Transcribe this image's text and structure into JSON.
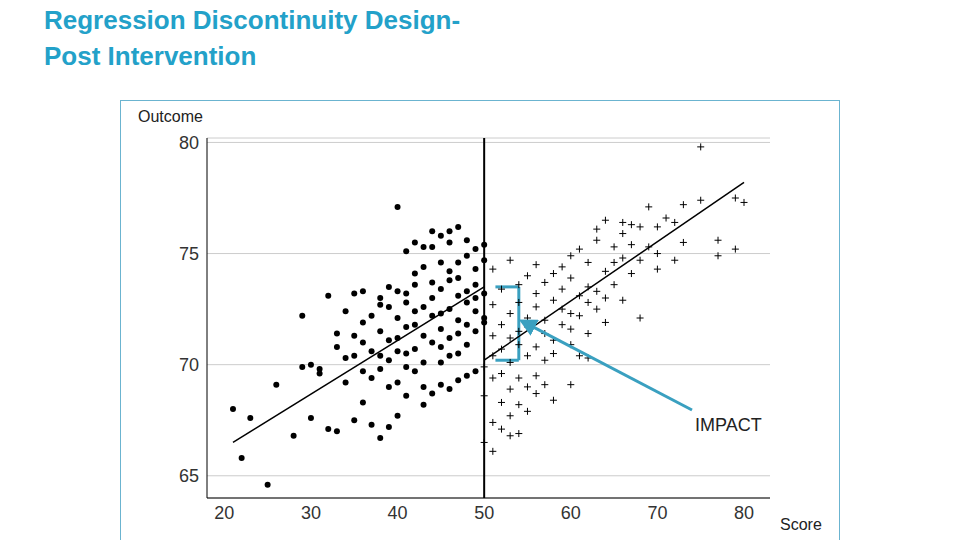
{
  "chart_data": {
    "type": "scatter",
    "title": "Regression Discontinuity Design-Post Intervention",
    "x_label": "Score",
    "y_label": "Outcome",
    "xlim": [
      18,
      83
    ],
    "ylim": [
      64,
      80.2
    ],
    "xticks": [
      20,
      30,
      40,
      50,
      60,
      70,
      80
    ],
    "yticks": [
      65,
      70,
      75,
      80
    ],
    "grid": "y",
    "cutoff": 50,
    "annotation": {
      "text": "IMPACT",
      "low": 70.2,
      "high": 73.5,
      "color": "#3aa0c0"
    },
    "series": [
      {
        "type": "scatter",
        "marker": "circle",
        "color": "#000000",
        "x": [
          21,
          22,
          23,
          25,
          26,
          29,
          30,
          31,
          32,
          33,
          33,
          34,
          34,
          35,
          35,
          35,
          36,
          36,
          36,
          37,
          37,
          37,
          38,
          38,
          38,
          38,
          39,
          39,
          39,
          39,
          40,
          40,
          40,
          40,
          40,
          41,
          41,
          41,
          41,
          41,
          42,
          42,
          42,
          42,
          42,
          43,
          43,
          43,
          43,
          43,
          44,
          44,
          44,
          44,
          44,
          45,
          45,
          45,
          45,
          45,
          45,
          46,
          46,
          46,
          46,
          46,
          46,
          47,
          47,
          47,
          47,
          47,
          47,
          48,
          48,
          48,
          48,
          48,
          48,
          49,
          49,
          49,
          49,
          49,
          49,
          49,
          50,
          50,
          50,
          50,
          50,
          36,
          37,
          38,
          39,
          40,
          41,
          42,
          43,
          44,
          45,
          46,
          47,
          48,
          43,
          44,
          40,
          35,
          34,
          33,
          32,
          31,
          30,
          28,
          29,
          45,
          46,
          47,
          42,
          41,
          39,
          38,
          36
        ],
        "values": [
          68,
          65.8,
          67.6,
          64.6,
          69.1,
          72.2,
          70,
          69.8,
          67.1,
          67,
          70.8,
          69.2,
          70.3,
          67.5,
          71.3,
          73.2,
          71.9,
          68.3,
          73.3,
          69.4,
          67.3,
          70.6,
          66.7,
          73,
          71.5,
          69.8,
          72.6,
          70.2,
          67.2,
          73.5,
          72.1,
          69.2,
          71.2,
          70.6,
          77.1,
          73.2,
          70.5,
          68.6,
          72.8,
          71.7,
          74.1,
          70.7,
          72.4,
          69.7,
          73.6,
          71.3,
          74.4,
          72.6,
          70.1,
          68.2,
          73.7,
          72.2,
          75.3,
          71,
          73,
          74.6,
          72.3,
          70.8,
          73.4,
          71.6,
          69.1,
          75.5,
          73.8,
          72.5,
          74.2,
          71.2,
          70.4,
          73.1,
          74.6,
          76.2,
          72,
          71.4,
          73.9,
          74.9,
          72.8,
          73.3,
          71.8,
          75.6,
          70.9,
          73.6,
          72.4,
          74.3,
          71.5,
          75.2,
          73,
          69.7,
          74.7,
          73.2,
          72.1,
          75.4,
          71.9,
          71,
          72.2,
          72.7,
          71.1,
          73.3,
          75.1,
          75.5,
          75.3,
          76,
          75.8,
          76,
          69.3,
          69.5,
          69,
          68.7,
          67.7,
          70.4,
          72.4,
          71.4,
          73.1,
          69.6,
          67.6,
          66.8,
          69.9,
          70.1,
          68.9,
          70.5,
          71.8,
          69.9,
          69,
          70.4,
          69.7
        ]
      },
      {
        "type": "scatter",
        "marker": "plus",
        "color": "#000000",
        "x": [
          50,
          50,
          50,
          51,
          51,
          51,
          51,
          51,
          51,
          52,
          52,
          52,
          52,
          52,
          52,
          53,
          53,
          53,
          53,
          53,
          53,
          54,
          54,
          54,
          54,
          54,
          54,
          55,
          55,
          55,
          55,
          55,
          55,
          56,
          56,
          56,
          56,
          56,
          57,
          57,
          57,
          57,
          57,
          58,
          58,
          58,
          58,
          58,
          59,
          59,
          59,
          59,
          60,
          60,
          60,
          60,
          60,
          61,
          61,
          61,
          61,
          62,
          62,
          62,
          62,
          63,
          63,
          63,
          63,
          64,
          64,
          64,
          64,
          65,
          65,
          65,
          66,
          66,
          66,
          66,
          67,
          67,
          67,
          68,
          68,
          68,
          69,
          69,
          70,
          70,
          70,
          72,
          72,
          73,
          75,
          75,
          77,
          77,
          79,
          79,
          80,
          73,
          71,
          62,
          60,
          56,
          54,
          53,
          51
        ],
        "values": [
          66.5,
          68.6,
          69.9,
          67.4,
          69.4,
          71.3,
          70.4,
          74.3,
          72.7,
          68.3,
          69.6,
          70.7,
          71.8,
          73.4,
          67.1,
          70.1,
          68.9,
          72.3,
          74.7,
          71.2,
          66.8,
          69.4,
          70.9,
          72.8,
          73.6,
          68.2,
          71.5,
          70.4,
          72.1,
          69,
          74,
          71.7,
          67.9,
          73.2,
          70.8,
          72.6,
          69.5,
          74.5,
          71.4,
          73.7,
          70.2,
          72,
          69.1,
          72.9,
          74.1,
          71.1,
          70.5,
          68.4,
          73.4,
          71.8,
          74.4,
          72.5,
          72.3,
          73.9,
          70.9,
          74.9,
          71.6,
          73.1,
          72.2,
          75.2,
          70.4,
          74.6,
          72.8,
          71.4,
          73.5,
          75.6,
          73.3,
          76.1,
          72.5,
          74.2,
          76.5,
          73,
          71.9,
          75.3,
          74.6,
          73.6,
          76.4,
          74.8,
          72.9,
          75.9,
          76.3,
          74.1,
          75.4,
          76.2,
          74.7,
          72.1,
          77.1,
          75.3,
          75,
          76.2,
          74.3,
          74.7,
          76.4,
          75.5,
          79.8,
          77.4,
          74.9,
          75.6,
          75.2,
          77.5,
          77.3,
          77.2,
          76.6,
          70.3,
          69.1,
          68.7,
          66.9,
          67.7,
          66.1
        ]
      },
      {
        "type": "line",
        "color": "#000000",
        "x": [
          21,
          50
        ],
        "values": [
          66.5,
          73.5
        ]
      },
      {
        "type": "line",
        "color": "#000000",
        "x": [
          50,
          80
        ],
        "values": [
          70.2,
          78.2
        ]
      }
    ]
  }
}
